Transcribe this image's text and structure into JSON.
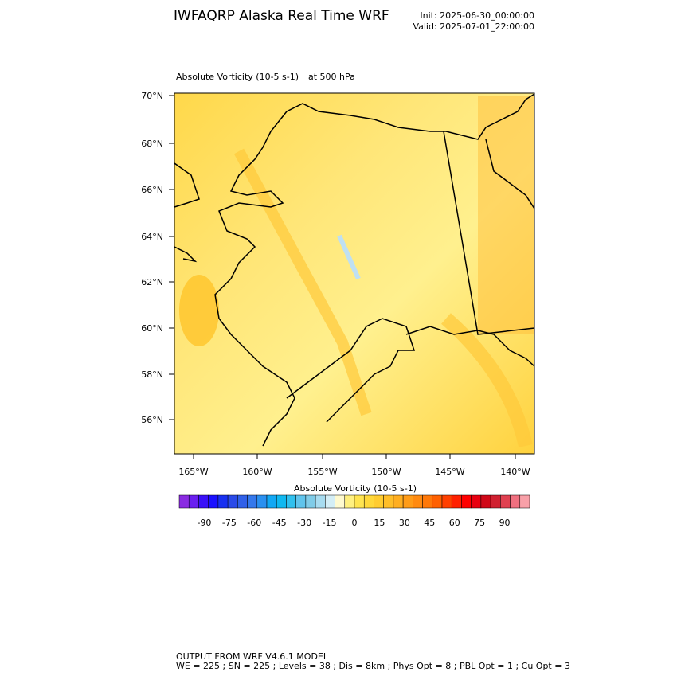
{
  "header": {
    "title": "IWFAQRP Alaska Real Time WRF",
    "init": "Init: 2025-06-30_00:00:00",
    "valid": "Valid: 2025-07-01_22:00:00"
  },
  "map": {
    "field": "Absolute Vorticity   (10-5 s-1)",
    "level": "at   500 hPa",
    "lat_labels": [
      "70°N",
      "68°N",
      "66°N",
      "64°N",
      "62°N",
      "60°N",
      "58°N",
      "56°N"
    ],
    "lon_labels": [
      "165°W",
      "160°W",
      "155°W",
      "150°W",
      "145°W",
      "140°W"
    ]
  },
  "colorbar": {
    "title": "Absolute Vorticity  (10-5 s-1)",
    "lim": [
      -105,
      105
    ],
    "ticks": [
      -90,
      -75,
      -60,
      -45,
      -30,
      -15,
      0,
      15,
      30,
      45,
      60,
      75,
      90
    ],
    "colors": [
      "#8a2be2",
      "#6a1ff0",
      "#3a10f8",
      "#1a10ff",
      "#1830f0",
      "#2a4ae8",
      "#3060e8",
      "#3478ec",
      "#2a90f0",
      "#12a8f4",
      "#10b8f0",
      "#30c0ee",
      "#60c4ec",
      "#80cce8",
      "#a8dcf0",
      "#d4eef6",
      "#fffad0",
      "#fff080",
      "#ffe450",
      "#ffd83a",
      "#ffcc30",
      "#ffbe28",
      "#ffae20",
      "#ff9c18",
      "#ff8a10",
      "#ff7808",
      "#ff6000",
      "#ff4000",
      "#ff2000",
      "#ff0000",
      "#e80010",
      "#d00818",
      "#d02030",
      "#e04050",
      "#f07080",
      "#f8a0a8"
    ]
  },
  "footer": [
    "OUTPUT FROM WRF V4.6.1 MODEL",
    "WE = 225 ; SN = 225 ; Levels = 38 ; Dis = 8km ; Phys Opt = 8 ; PBL Opt = 1 ; Cu Opt = 3"
  ]
}
